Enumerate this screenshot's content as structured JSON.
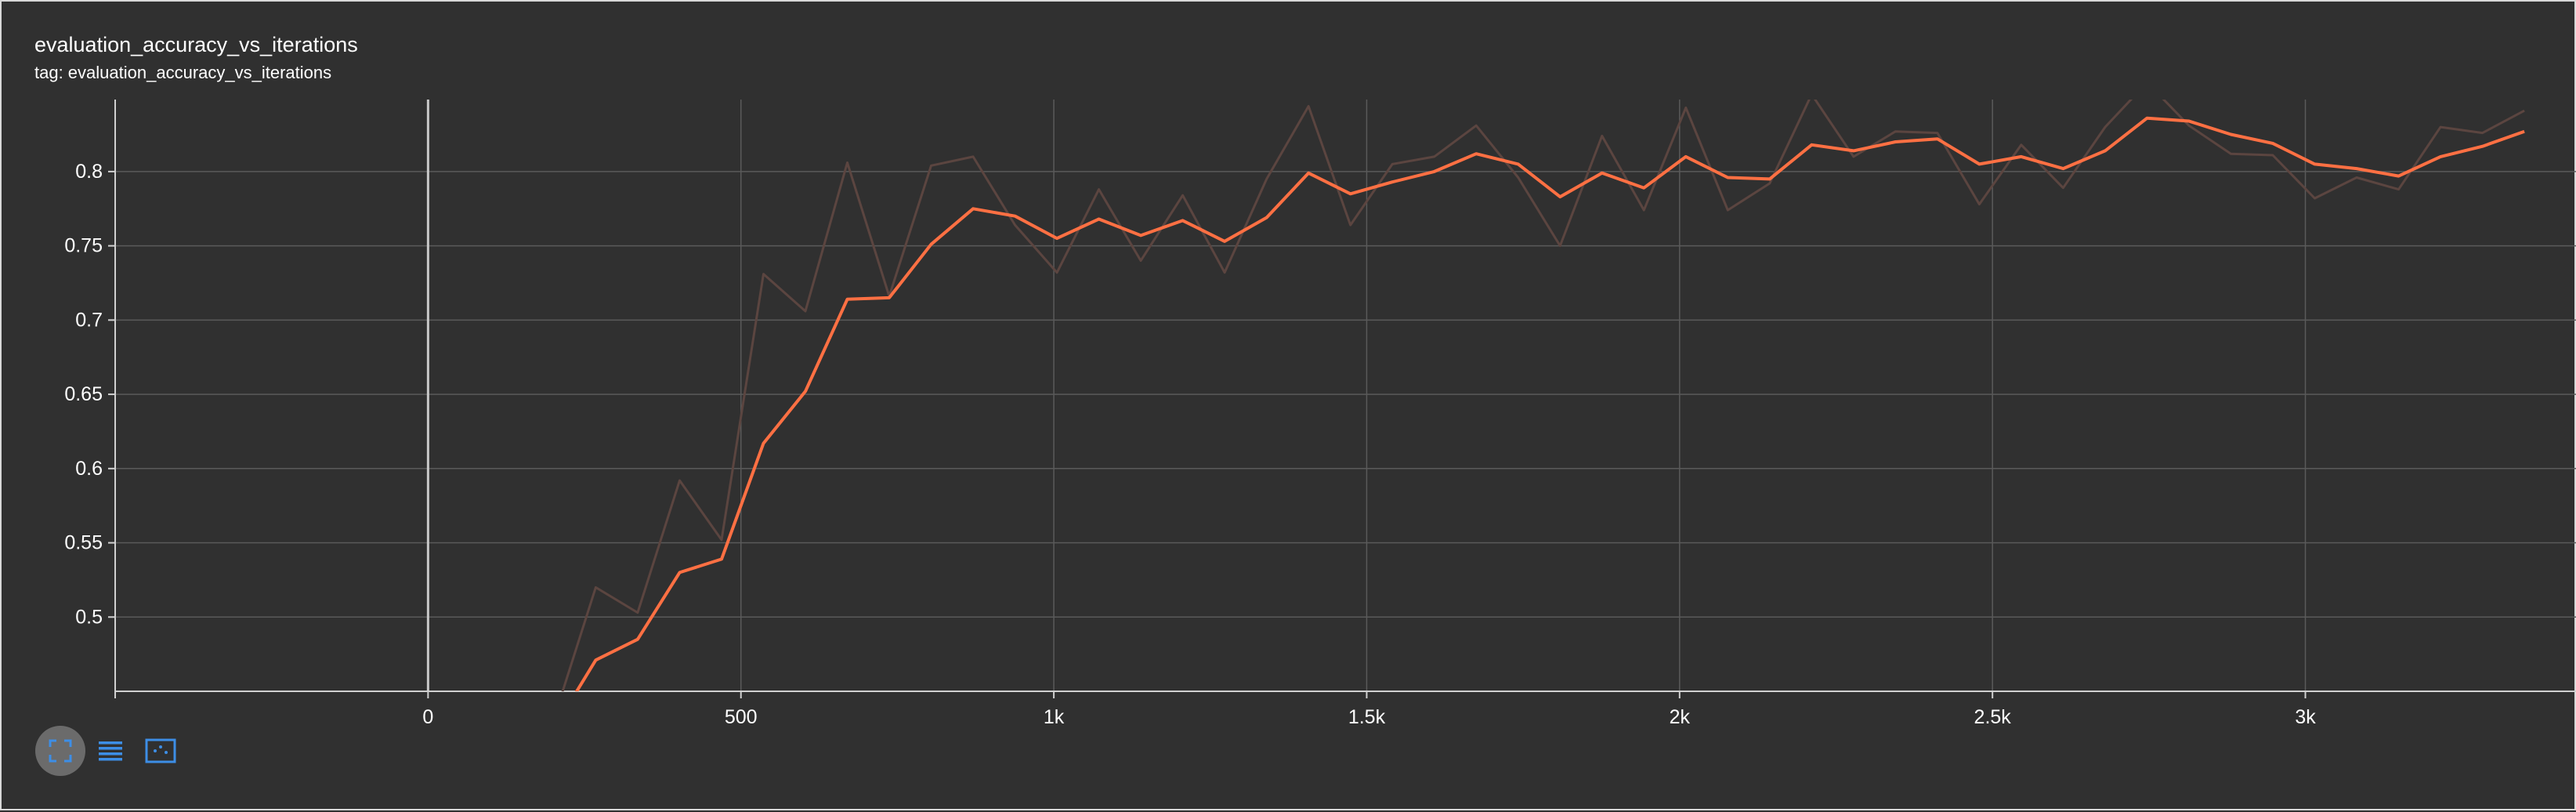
{
  "card": {
    "title": "evaluation_accuracy_vs_iterations",
    "tag_line": "tag: evaluation_accuracy_vs_iterations"
  },
  "controls": [
    {
      "name": "fullscreen-icon",
      "active": true
    },
    {
      "name": "data-table-icon",
      "active": false
    },
    {
      "name": "fit-domain-icon",
      "active": false
    }
  ],
  "colors": {
    "background": "#303030",
    "smoothed_line": "#ff7043",
    "raw_line": "#5b4540",
    "grid": "#5a5a5a",
    "axis_text": "#ffffff",
    "control_icon": "#3d8ee6"
  },
  "chart_data": {
    "type": "line",
    "title": "evaluation_accuracy_vs_iterations",
    "xlabel": "",
    "ylabel": "",
    "xlim": [
      -500,
      3435
    ],
    "ylim": [
      0.45,
      0.8485
    ],
    "x_ticks": [
      0,
      500,
      1000,
      1500,
      2000,
      2500,
      3000
    ],
    "x_tick_labels": [
      "0",
      "500",
      "1k",
      "1.5k",
      "2k",
      "2.5k",
      "3k"
    ],
    "y_ticks": [
      0.5,
      0.55,
      0.6,
      0.65,
      0.7,
      0.75,
      0.8
    ],
    "y_tick_labels": [
      "0.5",
      "0.55",
      "0.6",
      "0.65",
      "0.7",
      "0.75",
      "0.8"
    ],
    "grid": true,
    "series": [
      {
        "role": "smoothed",
        "x": [
          200,
          268,
          335,
          402,
          469,
          536,
          603,
          670,
          737,
          804,
          871,
          938,
          1005,
          1072,
          1139,
          1206,
          1273,
          1340,
          1407,
          1474,
          1541,
          1608,
          1675,
          1742,
          1809,
          1876,
          1943,
          2010,
          2077,
          2144,
          2211,
          2278,
          2345,
          2412,
          2479,
          2546,
          2613,
          2680,
          2747,
          2814,
          2881,
          2948,
          3015,
          3082,
          3149,
          3216,
          3283,
          3350
        ],
        "y": [
          0.424,
          0.471,
          0.485,
          0.53,
          0.539,
          0.617,
          0.652,
          0.714,
          0.715,
          0.751,
          0.775,
          0.77,
          0.755,
          0.768,
          0.757,
          0.767,
          0.753,
          0.769,
          0.799,
          0.785,
          0.793,
          0.8,
          0.812,
          0.805,
          0.783,
          0.799,
          0.789,
          0.81,
          0.796,
          0.795,
          0.818,
          0.814,
          0.82,
          0.822,
          0.805,
          0.81,
          0.802,
          0.814,
          0.836,
          0.834,
          0.825,
          0.819,
          0.805,
          0.802,
          0.797,
          0.81,
          0.817,
          0.827
        ]
      },
      {
        "role": "raw",
        "x": [
          200,
          268,
          335,
          402,
          469,
          536,
          603,
          670,
          737,
          804,
          871,
          938,
          1005,
          1072,
          1139,
          1206,
          1273,
          1340,
          1407,
          1474,
          1541,
          1608,
          1675,
          1742,
          1809,
          1876,
          1943,
          2010,
          2077,
          2144,
          2211,
          2278,
          2345,
          2412,
          2479,
          2546,
          2613,
          2680,
          2747,
          2814,
          2881,
          2948,
          3015,
          3082,
          3149,
          3216,
          3283,
          3350
        ],
        "y": [
          0.43,
          0.52,
          0.503,
          0.592,
          0.552,
          0.731,
          0.706,
          0.806,
          0.716,
          0.804,
          0.81,
          0.764,
          0.732,
          0.788,
          0.74,
          0.784,
          0.732,
          0.795,
          0.844,
          0.764,
          0.805,
          0.81,
          0.831,
          0.796,
          0.75,
          0.824,
          0.774,
          0.843,
          0.774,
          0.792,
          0.852,
          0.81,
          0.827,
          0.826,
          0.778,
          0.818,
          0.789,
          0.83,
          0.86,
          0.831,
          0.812,
          0.811,
          0.782,
          0.796,
          0.788,
          0.83,
          0.826,
          0.841
        ]
      }
    ]
  }
}
